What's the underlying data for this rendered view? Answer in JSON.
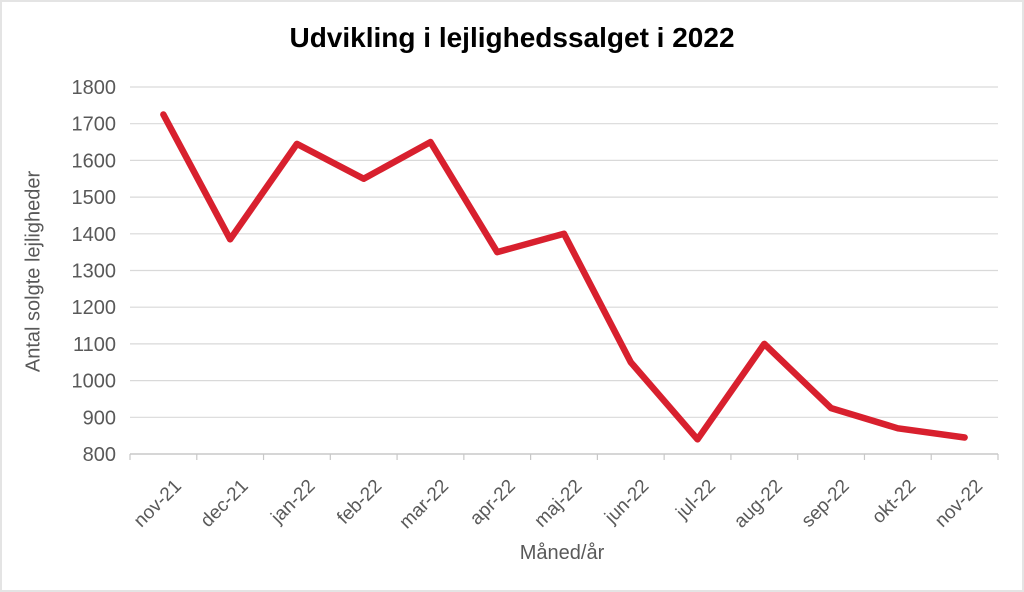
{
  "chart_data": {
    "type": "line",
    "title": "Udvikling i lejlighedssalget i 2022",
    "xlabel": "Måned/år",
    "ylabel": "Antal solgte lejligheder",
    "categories": [
      "nov-21",
      "dec-21",
      "jan-22",
      "feb-22",
      "mar-22",
      "apr-22",
      "maj-22",
      "jun-22",
      "jul-22",
      "aug-22",
      "sep-22",
      "okt-22",
      "nov-22"
    ],
    "values": [
      1725,
      1385,
      1645,
      1550,
      1650,
      1350,
      1400,
      1050,
      840,
      1100,
      925,
      870,
      845
    ],
    "ylim": [
      800,
      1800
    ],
    "ytick_step": 100,
    "grid": true,
    "legend_position": "none",
    "line_color": "#d8202e",
    "grid_color": "#d9d9d9",
    "axis_color": "#c8c8c8",
    "tick_color": "#c8c8c8",
    "tick_label_color": "#595959",
    "title_color": "#000000"
  }
}
